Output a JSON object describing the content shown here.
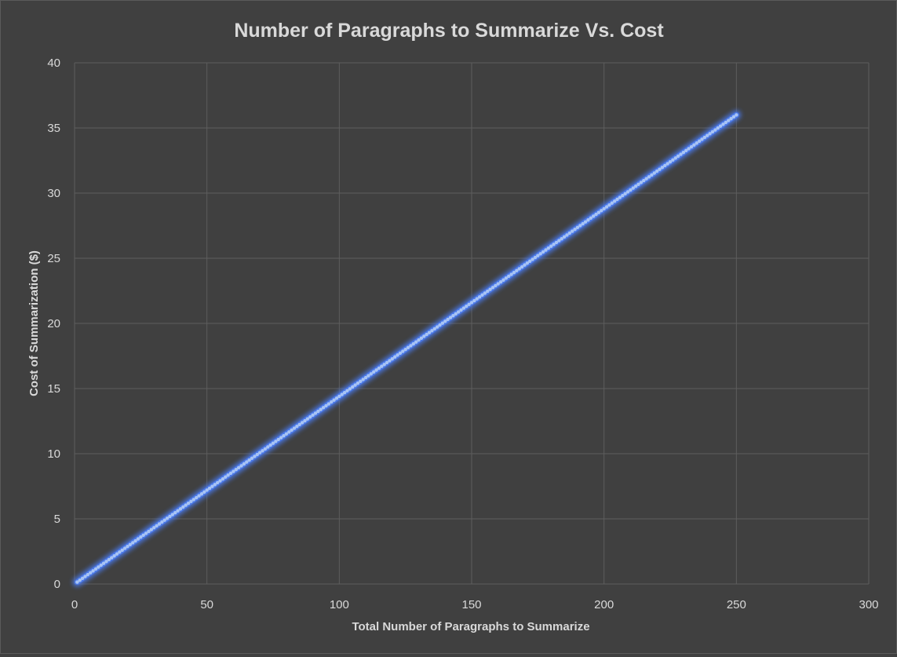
{
  "chart_data": {
    "type": "scatter",
    "title": "Number of Paragraphs to Summarize Vs. Cost",
    "xlabel": "Total Number of Paragraphs to Summarize",
    "ylabel": "Cost of Summarization ($)",
    "xlim": [
      0,
      300
    ],
    "ylim": [
      0,
      40
    ],
    "xticks": [
      0,
      50,
      100,
      150,
      200,
      250,
      300
    ],
    "yticks": [
      0,
      5,
      10,
      15,
      20,
      25,
      30,
      35,
      40
    ],
    "grid": true,
    "legend": "none",
    "series": [
      {
        "color": "#4a78e8",
        "marker_color": "#a8c4f5",
        "x_range": [
          1,
          250
        ],
        "x_step": 1,
        "y_at_start": 0.144,
        "y_per_x": 0.144,
        "endpoints": [
          {
            "x": 1,
            "y": 0.144
          },
          {
            "x": 250,
            "y": 36
          }
        ]
      }
    ]
  },
  "colors": {
    "background": "#404040",
    "grid": "#5e5e5e",
    "text": "#d9d9d9"
  }
}
